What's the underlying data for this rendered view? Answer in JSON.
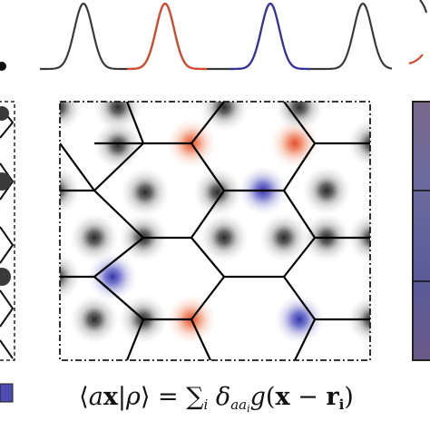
{
  "formula": {
    "lhs_open": "⟨",
    "lhs_a": "a",
    "lhs_x": "x",
    "lhs_bar": "|",
    "lhs_rho": "ρ",
    "lhs_close": "⟩",
    "equals": " = ",
    "sum": "∑",
    "sum_index": "i",
    "delta": " δ",
    "delta_sub_a": "aa",
    "delta_sub_i": "i",
    "g": "g",
    "paren_open": "(",
    "x": "x",
    "minus": " − ",
    "r": "r",
    "r_sub": "i",
    "paren_close": ")"
  },
  "colors": {
    "gray_species": "#3a3a3a",
    "red_species": "#e0502a",
    "blue_species": "#3a3aa8",
    "lattice_line": "#000000"
  },
  "peaks": [
    {
      "species": "gray"
    },
    {
      "species": "red"
    },
    {
      "species": "blue"
    },
    {
      "species": "gray"
    }
  ],
  "lattice_sites": [
    {
      "species": "gray"
    },
    {
      "species": "gray"
    },
    {
      "species": "red"
    },
    {
      "species": "gray"
    },
    {
      "species": "red"
    },
    {
      "species": "gray"
    },
    {
      "species": "gray"
    },
    {
      "species": "gray"
    },
    {
      "species": "blue"
    },
    {
      "species": "gray"
    },
    {
      "species": "gray"
    },
    {
      "species": "gray"
    },
    {
      "species": "gray"
    },
    {
      "species": "gray"
    },
    {
      "species": "gray"
    },
    {
      "species": "blue"
    },
    {
      "species": "gray"
    },
    {
      "species": "gray"
    },
    {
      "species": "gray"
    },
    {
      "species": "gray"
    },
    {
      "species": "gray"
    },
    {
      "species": "gray"
    },
    {
      "species": "red"
    },
    {
      "species": "gray"
    },
    {
      "species": "blue"
    },
    {
      "species": "gray"
    }
  ]
}
